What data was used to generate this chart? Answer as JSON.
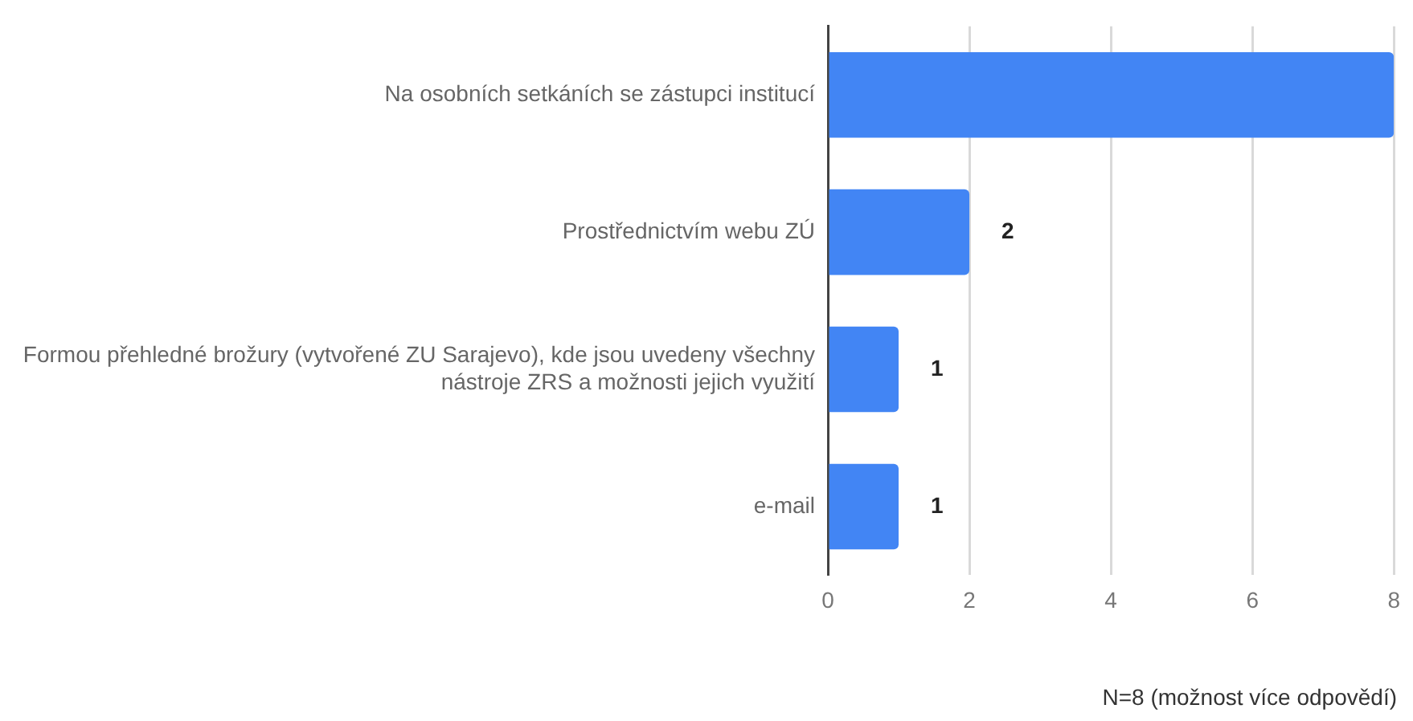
{
  "chart_data": {
    "type": "bar",
    "orientation": "horizontal",
    "categories": [
      "Na osobních setkáních se zástupci institucí",
      "Prostřednictvím webu ZÚ",
      "Formou přehledné brožury (vytvořené ZU Sarajevo), kde jsou uvedeny všechny nástroje ZRS a možnosti jejich využití",
      "e-mail"
    ],
    "values": [
      8,
      2,
      1,
      1
    ],
    "value_labels": [
      null,
      "2",
      "1",
      "1"
    ],
    "color": "#4285f4",
    "xlim": [
      0,
      8
    ],
    "xticks": [
      0,
      2,
      4,
      6,
      8
    ],
    "grid": "x",
    "legend": false,
    "annotations": [
      "N=8 (možnost více odpovědí)"
    ]
  }
}
